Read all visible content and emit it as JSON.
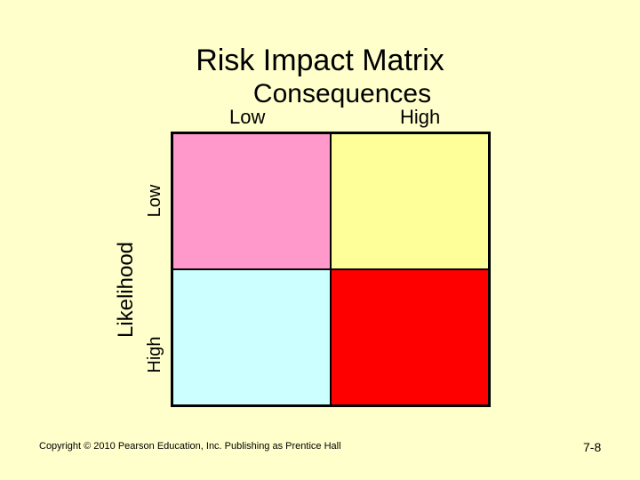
{
  "title": "Risk Impact Matrix",
  "x_axis": {
    "title": "Consequences",
    "low_label": "Low",
    "high_label": "High"
  },
  "y_axis": {
    "title": "Likelihood",
    "low_label": "Low",
    "high_label": "High"
  },
  "matrix": {
    "low_likelihood_low_consequence_color": "#ff99cc",
    "low_likelihood_high_consequence_color": "#ffff99",
    "high_likelihood_low_consequence_color": "#ccffff",
    "high_likelihood_high_consequence_color": "#ff0000"
  },
  "footer": {
    "copyright": "Copyright © 2010 Pearson Education, Inc. Publishing as Prentice Hall",
    "page_number": "7-8"
  },
  "colors": {
    "background": "#ffffcc",
    "grid_border": "#000000"
  }
}
